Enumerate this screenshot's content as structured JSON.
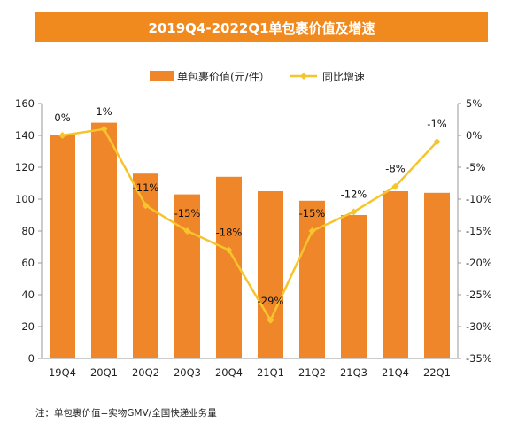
{
  "colors": {
    "banner": "#F18A1E",
    "bar": "#F0862A",
    "line": "#F6C42C",
    "axis": "#999999"
  },
  "chart_data": {
    "type": "bar+line",
    "title": "2019Q4-2022Q1单包裹价值及增速",
    "categories": [
      "19Q4",
      "20Q1",
      "20Q2",
      "20Q3",
      "20Q4",
      "21Q1",
      "21Q2",
      "21Q3",
      "21Q4",
      "22Q1"
    ],
    "series": [
      {
        "name": "单包裹价值(元/件）",
        "type": "bar",
        "axis": "left",
        "values": [
          140,
          148,
          116,
          103,
          114,
          105,
          99,
          90,
          105,
          104
        ]
      },
      {
        "name": "同比增速",
        "type": "line",
        "axis": "right",
        "values": [
          0,
          1,
          -11,
          -15,
          -18,
          -29,
          -15,
          -12,
          -8,
          -1
        ],
        "labels": [
          "0%",
          "1%",
          "-11%",
          "-15%",
          "-18%",
          "-29%",
          "-15%",
          "-12%",
          "-8%",
          "-1%"
        ]
      }
    ],
    "left_axis": {
      "ylim": [
        0,
        160
      ],
      "ticks": [
        "0",
        "20",
        "40",
        "60",
        "80",
        "100",
        "120",
        "140",
        "160"
      ]
    },
    "right_axis": {
      "ylim": [
        -35,
        5
      ],
      "ticks": [
        "5%",
        "0%",
        "-5%",
        "-10%",
        "-15%",
        "-20%",
        "-25%",
        "-30%",
        "-35%"
      ]
    },
    "legend_position": "top",
    "grid": false
  },
  "footnote": "注：单包裹价值=实物GMV/全国快递业务量"
}
